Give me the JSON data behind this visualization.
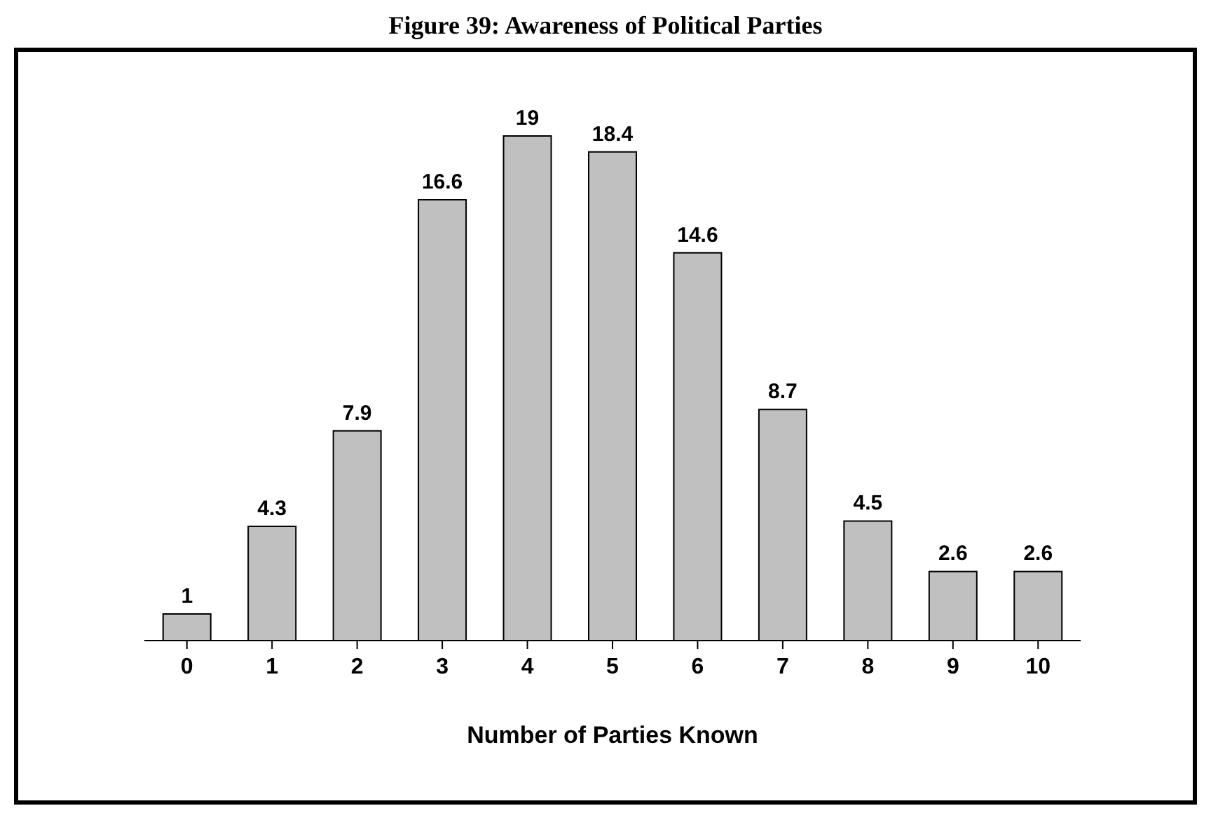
{
  "chart_data": {
    "type": "bar",
    "title": "Figure 39: Awareness of Political Parties",
    "xlabel": "Number of Parties Known",
    "categories": [
      "0",
      "1",
      "2",
      "3",
      "4",
      "5",
      "6",
      "7",
      "8",
      "9",
      "10"
    ],
    "values": [
      1,
      4.3,
      7.9,
      16.6,
      19,
      18.4,
      14.6,
      8.7,
      4.5,
      2.6,
      2.6
    ],
    "color": "#c0c0c0",
    "data_labels": true
  }
}
